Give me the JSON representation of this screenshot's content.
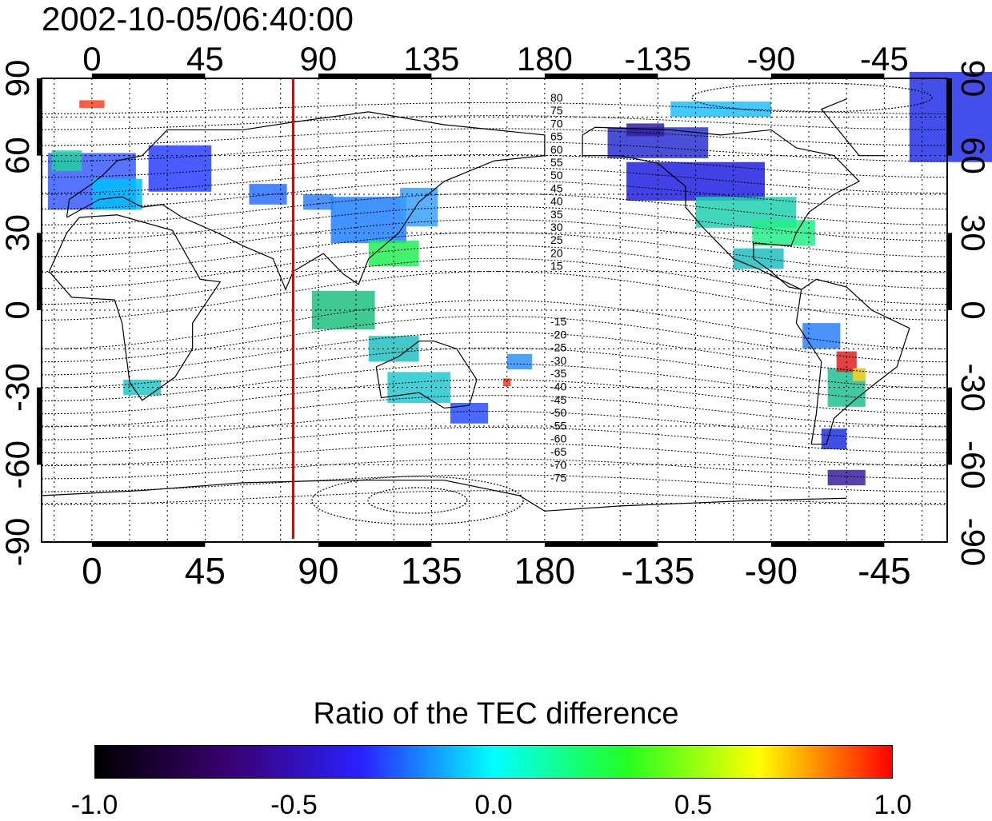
{
  "title": "2002-10-05/06:40:00",
  "map": {
    "lon_ticks_top": [
      "0",
      "45",
      "90",
      "135",
      "180",
      "-135",
      "-90",
      "-45"
    ],
    "lon_ticks_bottom": [
      "0",
      "45",
      "90",
      "135",
      "180",
      "-135",
      "-90",
      "-45"
    ],
    "lat_ticks_left": [
      "90",
      "60",
      "30",
      "0",
      "-30",
      "-60",
      "-90"
    ],
    "lat_ticks_right": [
      "90",
      "60",
      "30",
      "0",
      "-30",
      "-60",
      "-90"
    ],
    "contour_labels_north": [
      "80",
      "75",
      "70",
      "65",
      "60",
      "55",
      "50",
      "45",
      "40",
      "35",
      "30",
      "25",
      "20",
      "15"
    ],
    "contour_labels_south": [
      "-15",
      "-20",
      "-25",
      "-30",
      "-35",
      "-40",
      "-45",
      "-50",
      "-55",
      "-60",
      "-65",
      "-70",
      "-75"
    ],
    "marker_line": {
      "longitude": 80,
      "color": "#e00000"
    }
  },
  "colorbar": {
    "title": "Ratio of the TEC difference",
    "tick_labels": [
      "-1.0",
      "-0.5",
      "0.0",
      "0.5",
      "1.0"
    ],
    "range": [
      -1.0,
      1.0
    ],
    "colormap": [
      "#000000",
      "#3a0070",
      "#2a20ff",
      "#00ffff",
      "#22ff22",
      "#ffff00",
      "#ff0000"
    ]
  }
}
